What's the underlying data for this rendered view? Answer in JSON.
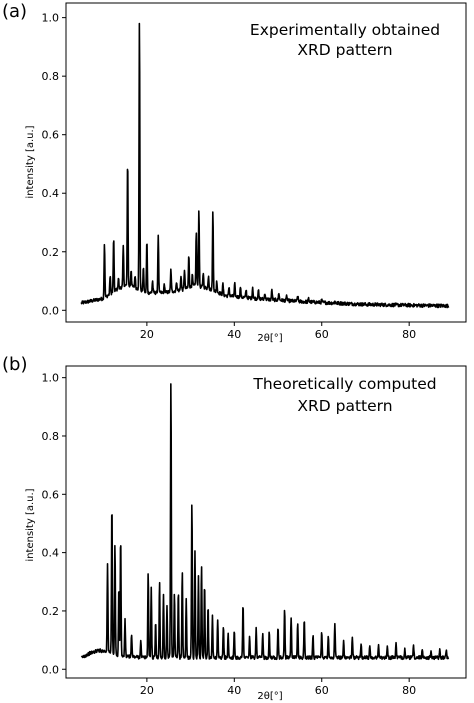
{
  "chart_data": [
    {
      "type": "line",
      "panel_label": "(a)",
      "annotation_lines": [
        "Experimentally obtained",
        "XRD pattern"
      ],
      "xlabel": "2θ[°]",
      "ylabel": "intensity [a.u.]",
      "xlim": [
        1.5,
        93
      ],
      "ylim": [
        -0.04,
        1.05
      ],
      "xticks": [
        20,
        40,
        60,
        80
      ],
      "yticks": [
        0.0,
        0.2,
        0.4,
        0.6,
        0.8,
        1.0
      ],
      "x_range": [
        5,
        89
      ],
      "baseline": {
        "comment_free": true,
        "points": [
          [
            5,
            0.025
          ],
          [
            10,
            0.04
          ],
          [
            13,
            0.07
          ],
          [
            15,
            0.085
          ],
          [
            17,
            0.08
          ],
          [
            20,
            0.06
          ],
          [
            24,
            0.06
          ],
          [
            28,
            0.07
          ],
          [
            31,
            0.085
          ],
          [
            34,
            0.075
          ],
          [
            38,
            0.05
          ],
          [
            45,
            0.04
          ],
          [
            55,
            0.03
          ],
          [
            70,
            0.02
          ],
          [
            89,
            0.015
          ]
        ]
      },
      "noise_amplitude": 0.006,
      "peaks": [
        {
          "x": 10.3,
          "y": 0.23
        },
        {
          "x": 11.6,
          "y": 0.12
        },
        {
          "x": 12.4,
          "y": 0.25
        },
        {
          "x": 13.5,
          "y": 0.11
        },
        {
          "x": 14.6,
          "y": 0.22
        },
        {
          "x": 15.6,
          "y": 0.52
        },
        {
          "x": 16.4,
          "y": 0.14
        },
        {
          "x": 17.3,
          "y": 0.12
        },
        {
          "x": 18.3,
          "y": 1.0
        },
        {
          "x": 19.2,
          "y": 0.15
        },
        {
          "x": 20.0,
          "y": 0.24
        },
        {
          "x": 21.3,
          "y": 0.1
        },
        {
          "x": 22.6,
          "y": 0.26
        },
        {
          "x": 24.0,
          "y": 0.09
        },
        {
          "x": 25.5,
          "y": 0.14
        },
        {
          "x": 26.8,
          "y": 0.1
        },
        {
          "x": 27.8,
          "y": 0.12
        },
        {
          "x": 28.6,
          "y": 0.14
        },
        {
          "x": 29.6,
          "y": 0.19
        },
        {
          "x": 30.4,
          "y": 0.12
        },
        {
          "x": 31.3,
          "y": 0.27
        },
        {
          "x": 31.9,
          "y": 0.35
        },
        {
          "x": 32.9,
          "y": 0.13
        },
        {
          "x": 34.1,
          "y": 0.12
        },
        {
          "x": 35.1,
          "y": 0.34
        },
        {
          "x": 36.0,
          "y": 0.1
        },
        {
          "x": 37.4,
          "y": 0.09
        },
        {
          "x": 38.8,
          "y": 0.08
        },
        {
          "x": 40.1,
          "y": 0.09
        },
        {
          "x": 41.4,
          "y": 0.08
        },
        {
          "x": 42.7,
          "y": 0.07
        },
        {
          "x": 44.2,
          "y": 0.08
        },
        {
          "x": 45.5,
          "y": 0.07
        },
        {
          "x": 47.0,
          "y": 0.06
        },
        {
          "x": 48.6,
          "y": 0.07
        },
        {
          "x": 50.2,
          "y": 0.06
        },
        {
          "x": 52.0,
          "y": 0.05
        },
        {
          "x": 54.5,
          "y": 0.05
        },
        {
          "x": 57.0,
          "y": 0.04
        },
        {
          "x": 60.0,
          "y": 0.035
        },
        {
          "x": 63.0,
          "y": 0.03
        }
      ]
    },
    {
      "type": "line",
      "panel_label": "(b)",
      "annotation_lines": [
        "Theoretically computed",
        "XRD pattern"
      ],
      "xlabel": "2θ[°]",
      "ylabel": "intensity [a.u.]",
      "xlim": [
        1.5,
        93
      ],
      "ylim": [
        -0.03,
        1.04
      ],
      "xticks": [
        20,
        40,
        60,
        80
      ],
      "yticks": [
        0.0,
        0.2,
        0.4,
        0.6,
        0.8,
        1.0
      ],
      "x_range": [
        5,
        89
      ],
      "baseline": {
        "comment_free": true,
        "points": [
          [
            5,
            0.04
          ],
          [
            7,
            0.055
          ],
          [
            9,
            0.065
          ],
          [
            11,
            0.06
          ],
          [
            14,
            0.045
          ],
          [
            20,
            0.04
          ],
          [
            40,
            0.04
          ],
          [
            60,
            0.04
          ],
          [
            89,
            0.04
          ]
        ]
      },
      "noise_amplitude": 0.006,
      "peaks": [
        {
          "x": 11.0,
          "y": 0.36
        },
        {
          "x": 12.0,
          "y": 0.58
        },
        {
          "x": 12.7,
          "y": 0.43
        },
        {
          "x": 13.6,
          "y": 0.29
        },
        {
          "x": 14.0,
          "y": 0.46
        },
        {
          "x": 15.0,
          "y": 0.17
        },
        {
          "x": 16.5,
          "y": 0.12
        },
        {
          "x": 18.6,
          "y": 0.1
        },
        {
          "x": 20.3,
          "y": 0.34
        },
        {
          "x": 21.0,
          "y": 0.28
        },
        {
          "x": 22.0,
          "y": 0.16
        },
        {
          "x": 22.9,
          "y": 0.3
        },
        {
          "x": 23.8,
          "y": 0.26
        },
        {
          "x": 24.6,
          "y": 0.22
        },
        {
          "x": 25.5,
          "y": 1.0
        },
        {
          "x": 26.3,
          "y": 0.26
        },
        {
          "x": 27.2,
          "y": 0.27
        },
        {
          "x": 28.1,
          "y": 0.34
        },
        {
          "x": 29.0,
          "y": 0.24
        },
        {
          "x": 30.3,
          "y": 0.58
        },
        {
          "x": 31.0,
          "y": 0.4
        },
        {
          "x": 31.8,
          "y": 0.32
        },
        {
          "x": 32.5,
          "y": 0.36
        },
        {
          "x": 33.2,
          "y": 0.3
        },
        {
          "x": 34.0,
          "y": 0.22
        },
        {
          "x": 35.0,
          "y": 0.18
        },
        {
          "x": 36.2,
          "y": 0.17
        },
        {
          "x": 37.5,
          "y": 0.15
        },
        {
          "x": 38.6,
          "y": 0.12
        },
        {
          "x": 40.0,
          "y": 0.13
        },
        {
          "x": 42.0,
          "y": 0.23
        },
        {
          "x": 43.5,
          "y": 0.11
        },
        {
          "x": 45.0,
          "y": 0.14
        },
        {
          "x": 46.5,
          "y": 0.12
        },
        {
          "x": 48.0,
          "y": 0.13
        },
        {
          "x": 50.0,
          "y": 0.15
        },
        {
          "x": 51.5,
          "y": 0.21
        },
        {
          "x": 53.0,
          "y": 0.18
        },
        {
          "x": 54.5,
          "y": 0.16
        },
        {
          "x": 56.0,
          "y": 0.17
        },
        {
          "x": 58.0,
          "y": 0.12
        },
        {
          "x": 60.0,
          "y": 0.13
        },
        {
          "x": 61.5,
          "y": 0.12
        },
        {
          "x": 63.0,
          "y": 0.16
        },
        {
          "x": 65.0,
          "y": 0.1
        },
        {
          "x": 67.0,
          "y": 0.11
        },
        {
          "x": 69.0,
          "y": 0.09
        },
        {
          "x": 71.0,
          "y": 0.08
        },
        {
          "x": 73.0,
          "y": 0.08
        },
        {
          "x": 75.0,
          "y": 0.08
        },
        {
          "x": 77.0,
          "y": 0.09
        },
        {
          "x": 79.0,
          "y": 0.07
        },
        {
          "x": 81.0,
          "y": 0.08
        },
        {
          "x": 83.0,
          "y": 0.07
        },
        {
          "x": 85.0,
          "y": 0.06
        },
        {
          "x": 87.0,
          "y": 0.07
        },
        {
          "x": 88.5,
          "y": 0.06
        }
      ]
    }
  ]
}
